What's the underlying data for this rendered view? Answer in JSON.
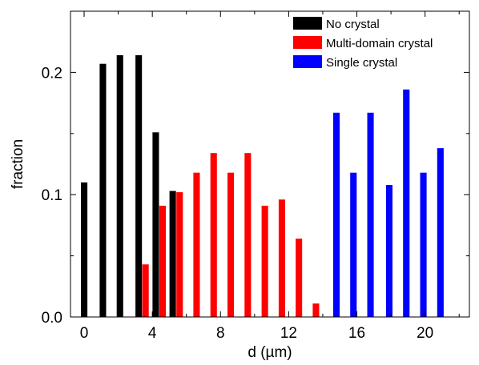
{
  "chart_data": {
    "type": "bar",
    "xlabel": "d (µm)",
    "ylabel": "fraction",
    "xlim": [
      -0.8,
      22.6
    ],
    "ylim": [
      0,
      0.25
    ],
    "x_ticks": [
      0,
      4,
      8,
      12,
      16,
      20
    ],
    "x_tick_labels": [
      "0",
      "4",
      "8",
      "12",
      "16",
      "20"
    ],
    "y_ticks": [
      0.0,
      0.1,
      0.2
    ],
    "y_tick_labels": [
      "0.0",
      "0.1",
      "0.2"
    ],
    "bar_width": 0.38,
    "grid": false,
    "legend_position": "top-right",
    "series": [
      {
        "name": "No crystal",
        "color": "#000000",
        "points": [
          {
            "x": 0.0,
            "y": 0.11
          },
          {
            "x": 1.1,
            "y": 0.207
          },
          {
            "x": 2.1,
            "y": 0.214
          },
          {
            "x": 3.2,
            "y": 0.214
          },
          {
            "x": 4.2,
            "y": 0.151
          },
          {
            "x": 5.2,
            "y": 0.103
          }
        ]
      },
      {
        "name": "Multi-domain crystal",
        "color": "#ff0000",
        "points": [
          {
            "x": 3.6,
            "y": 0.043
          },
          {
            "x": 4.6,
            "y": 0.091
          },
          {
            "x": 5.6,
            "y": 0.102
          },
          {
            "x": 6.6,
            "y": 0.118
          },
          {
            "x": 7.6,
            "y": 0.134
          },
          {
            "x": 8.6,
            "y": 0.118
          },
          {
            "x": 9.6,
            "y": 0.134
          },
          {
            "x": 10.6,
            "y": 0.091
          },
          {
            "x": 11.6,
            "y": 0.096
          },
          {
            "x": 12.6,
            "y": 0.064
          },
          {
            "x": 13.6,
            "y": 0.011
          }
        ]
      },
      {
        "name": "Single crystal",
        "color": "#0000ff",
        "points": [
          {
            "x": 14.8,
            "y": 0.167
          },
          {
            "x": 15.8,
            "y": 0.118
          },
          {
            "x": 16.8,
            "y": 0.167
          },
          {
            "x": 17.9,
            "y": 0.108
          },
          {
            "x": 18.9,
            "y": 0.186
          },
          {
            "x": 19.9,
            "y": 0.118
          },
          {
            "x": 20.9,
            "y": 0.138
          }
        ]
      }
    ]
  }
}
